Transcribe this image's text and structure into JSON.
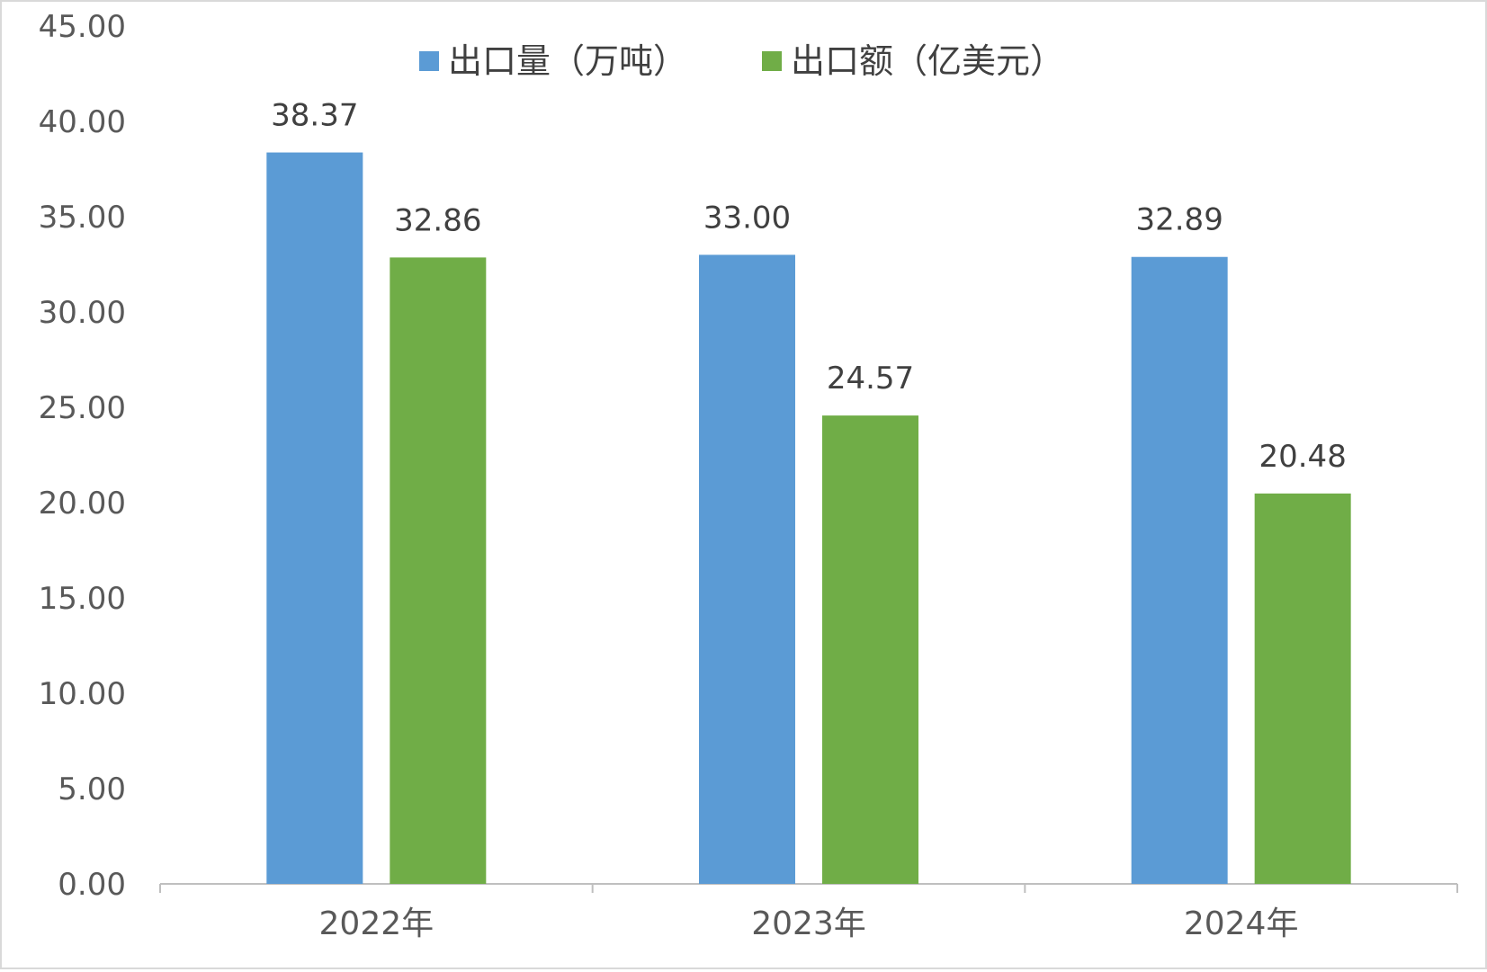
{
  "chart_data": {
    "type": "bar",
    "title": "",
    "xlabel": "",
    "ylabel": "",
    "categories": [
      "2022年",
      "2023年",
      "2024年"
    ],
    "series": [
      {
        "name": "出口量（万吨）",
        "color": "#5b9bd5",
        "values": [
          38.37,
          33.0,
          32.89
        ]
      },
      {
        "name": "出口额（亿美元）",
        "color": "#70ad47",
        "values": [
          32.86,
          24.57,
          20.48
        ]
      }
    ],
    "ylim": [
      0,
      45
    ],
    "ytick_step": 5,
    "ytick_labels": [
      "0.00",
      "5.00",
      "10.00",
      "15.00",
      "20.00",
      "25.00",
      "30.00",
      "35.00",
      "40.00",
      "45.00"
    ],
    "data_labels": [
      [
        "38.37",
        "33.00",
        "32.89"
      ],
      [
        "32.86",
        "24.57",
        "20.48"
      ]
    ],
    "grid": false,
    "legend_position": "top-center"
  }
}
